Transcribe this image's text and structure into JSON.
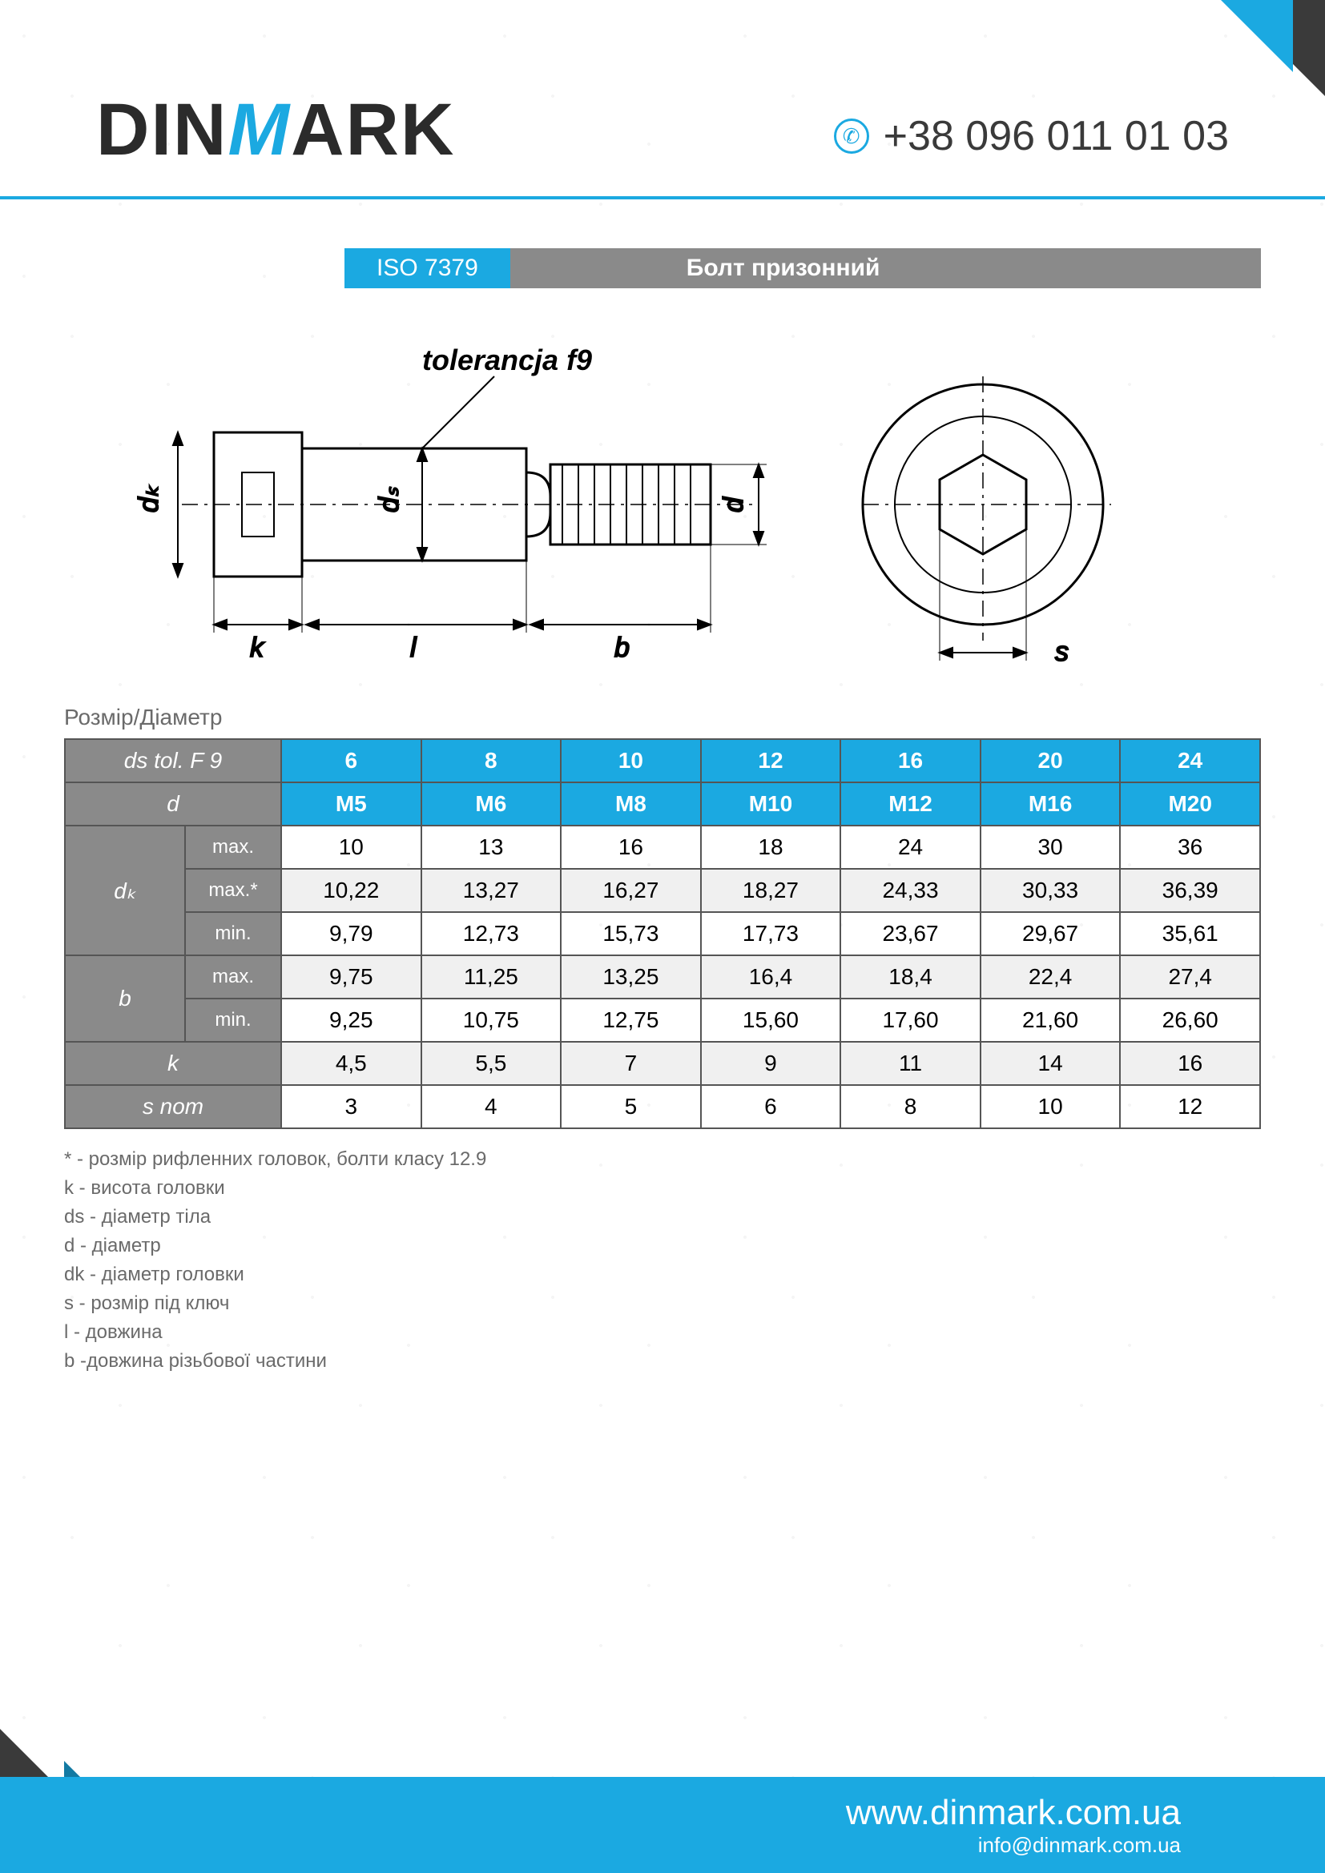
{
  "brand": {
    "pre": "DIN",
    "mid": "M",
    "post": "ARK"
  },
  "phone": "+38 096 011 01 03",
  "iso": "ISO 7379",
  "product_name": "Болт призонний",
  "drawing": {
    "tolerance_label": "tolerancja f9",
    "dims": {
      "dk": "dₖ",
      "k": "k",
      "l": "l",
      "b": "b",
      "ds": "dₛ",
      "d": "d",
      "s": "s"
    }
  },
  "section_label": "Розмір/Діаметр",
  "table": {
    "header_rows": [
      {
        "label": "ds  tol. F 9",
        "cells": [
          "6",
          "8",
          "10",
          "12",
          "16",
          "20",
          "24"
        ],
        "label_cls": "hdr-grey",
        "cell_cls": "hdr-blue"
      },
      {
        "label": "d",
        "cells": [
          "M5",
          "M6",
          "M8",
          "M10",
          "M12",
          "M16",
          "M20"
        ],
        "label_cls": "hdr-grey",
        "cell_cls": "hdr-blue"
      }
    ],
    "groups": [
      {
        "name": "dₖ",
        "rows": [
          {
            "sub": "max.",
            "vals": [
              "10",
              "13",
              "16",
              "18",
              "24",
              "30",
              "36"
            ],
            "alt": false
          },
          {
            "sub": "max.*",
            "vals": [
              "10,22",
              "13,27",
              "16,27",
              "18,27",
              "24,33",
              "30,33",
              "36,39"
            ],
            "alt": true
          },
          {
            "sub": "min.",
            "vals": [
              "9,79",
              "12,73",
              "15,73",
              "17,73",
              "23,67",
              "29,67",
              "35,61"
            ],
            "alt": false
          }
        ]
      },
      {
        "name": "b",
        "rows": [
          {
            "sub": "max.",
            "vals": [
              "9,75",
              "11,25",
              "13,25",
              "16,4",
              "18,4",
              "22,4",
              "27,4"
            ],
            "alt": true
          },
          {
            "sub": "min.",
            "vals": [
              "9,25",
              "10,75",
              "12,75",
              "15,60",
              "17,60",
              "21,60",
              "26,60"
            ],
            "alt": false
          }
        ]
      }
    ],
    "single_rows": [
      {
        "name": "k",
        "vals": [
          "4,5",
          "5,5",
          "7",
          "9",
          "11",
          "14",
          "16"
        ],
        "alt": true
      },
      {
        "name": "s nom",
        "vals": [
          "3",
          "4",
          "5",
          "6",
          "8",
          "10",
          "12"
        ],
        "alt": false
      }
    ]
  },
  "legend": [
    "*  -  розмір рифленних головок, болти класу 12.9",
    "k - висота головки",
    "ds - діаметр тіла",
    "d - діаметр",
    "dk - діаметр головки",
    "s - розмір під ключ",
    "l - довжина",
    "b -довжина різьбової частини"
  ],
  "footer": {
    "url": "www.dinmark.com.ua",
    "email": "info@dinmark.com.ua"
  },
  "colors": {
    "accent": "#1ba9e1",
    "grey": "#8a8a8a",
    "dark": "#3a3a3a"
  }
}
